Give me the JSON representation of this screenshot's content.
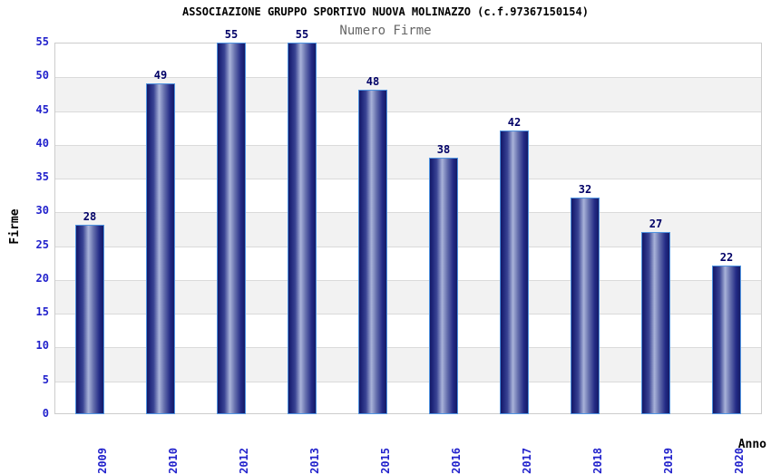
{
  "chart_data": {
    "type": "bar",
    "title": "ASSOCIAZIONE GRUPPO SPORTIVO NUOVA MOLINAZZO (c.f.97367150154)",
    "subtitle": "Numero Firme",
    "xlabel": "Anno",
    "ylabel": "Firme",
    "categories": [
      "2009",
      "2010",
      "2012",
      "2013",
      "2015",
      "2016",
      "2017",
      "2018",
      "2019",
      "2020"
    ],
    "values": [
      28,
      49,
      55,
      55,
      48,
      38,
      42,
      32,
      27,
      22
    ],
    "ylim": [
      0,
      55
    ],
    "ytick_step": 5,
    "yticks": [
      0,
      5,
      10,
      15,
      20,
      25,
      30,
      35,
      40,
      45,
      50,
      55
    ],
    "grid": "alternating-horizontal-bands",
    "legend_position": "none",
    "bar_labels_shown": true
  },
  "colors": {
    "background": "#ffffff",
    "band_fill": "#f2f2f2",
    "gridline": "#dadada",
    "plot_border": "#cccccc",
    "bar_edge_dark": "#141a66",
    "bar_center_light": "#a9b3d9",
    "bar_outline": "#4f93e0",
    "tick_label_blue": "#2222cc",
    "bar_value_navy": "#000066",
    "title_black": "#000000",
    "subtitle_gray": "#666666"
  }
}
